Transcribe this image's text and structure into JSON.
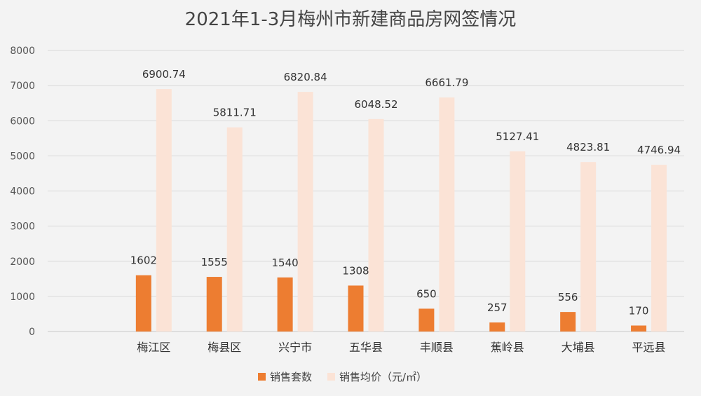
{
  "chart_data": {
    "type": "bar",
    "title": "2021年1-3月梅州市新建商品房网签情况",
    "categories": [
      "梅江区",
      "梅县区",
      "兴宁市",
      "五华县",
      "丰顺县",
      "蕉岭县",
      "大埔县",
      "平远县"
    ],
    "series": [
      {
        "name": "销售套数",
        "color": "#ed7d31",
        "values": [
          1602,
          1555,
          1540,
          1308,
          650,
          257,
          556,
          170
        ],
        "labels": [
          "1602",
          "1555",
          "1540",
          "1308",
          "650",
          "257",
          "556",
          "170"
        ]
      },
      {
        "name": "销售均价（元/㎡）",
        "color": "#fbe3d6",
        "values": [
          6900.74,
          5811.71,
          6820.84,
          6048.52,
          6661.79,
          5127.41,
          4823.81,
          4746.94
        ],
        "labels": [
          "6900.74",
          "5811.71",
          "6820.84",
          "6048.52",
          "6661.79",
          "5127.41",
          "4823.81",
          "4746.94"
        ]
      }
    ],
    "xlabel": "",
    "ylabel": "",
    "ylim": [
      0,
      8000
    ],
    "yticks": [
      "0",
      "1000",
      "2000",
      "3000",
      "4000",
      "5000",
      "6000",
      "7000",
      "8000"
    ],
    "grid": true,
    "legend": "bottom"
  }
}
